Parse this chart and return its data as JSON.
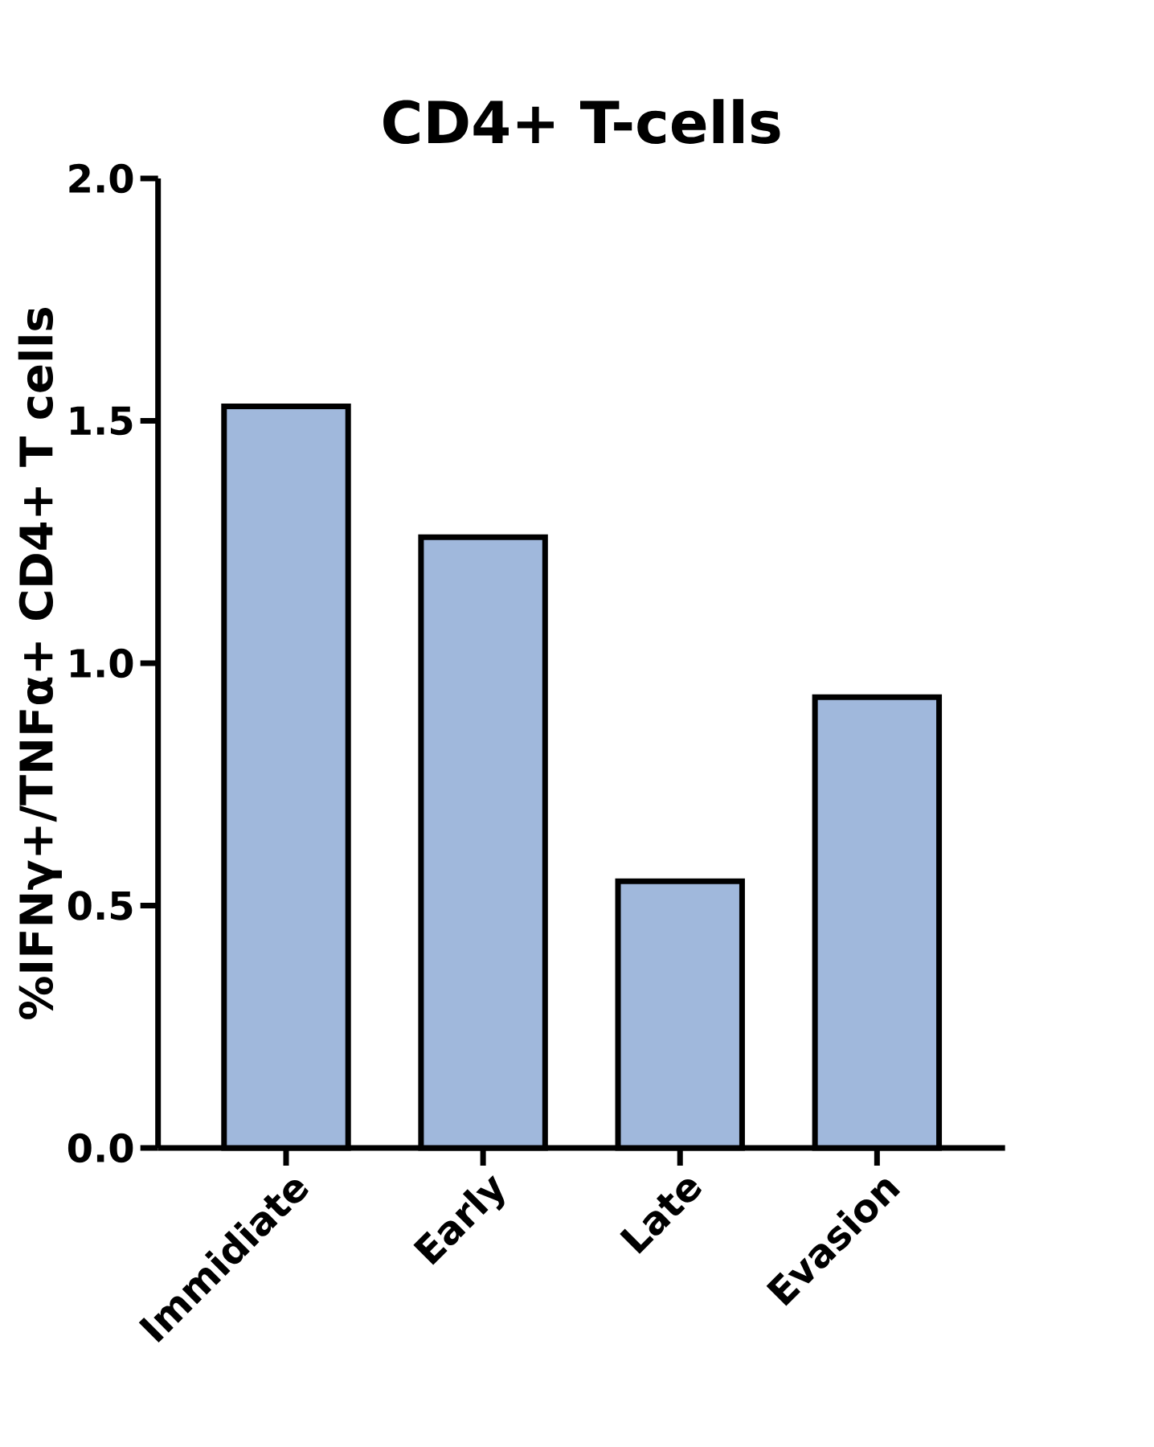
{
  "chart_data": {
    "type": "bar",
    "title": "CD4+ T-cells",
    "ylabel": "%IFNγ+/TNFα+ CD4+ T cells",
    "categories": [
      "Immidiate",
      "Early",
      "Late",
      "Evasion"
    ],
    "values": [
      1.53,
      1.26,
      0.55,
      0.93
    ],
    "color": "#a0b8dc",
    "ylim": [
      0,
      2
    ],
    "yticks": [
      {
        "value": 0,
        "label": "0.0"
      },
      0.5,
      {
        "value": 1,
        "label": "1.0"
      },
      1.5,
      {
        "value": 2,
        "label": "2.0"
      }
    ]
  }
}
